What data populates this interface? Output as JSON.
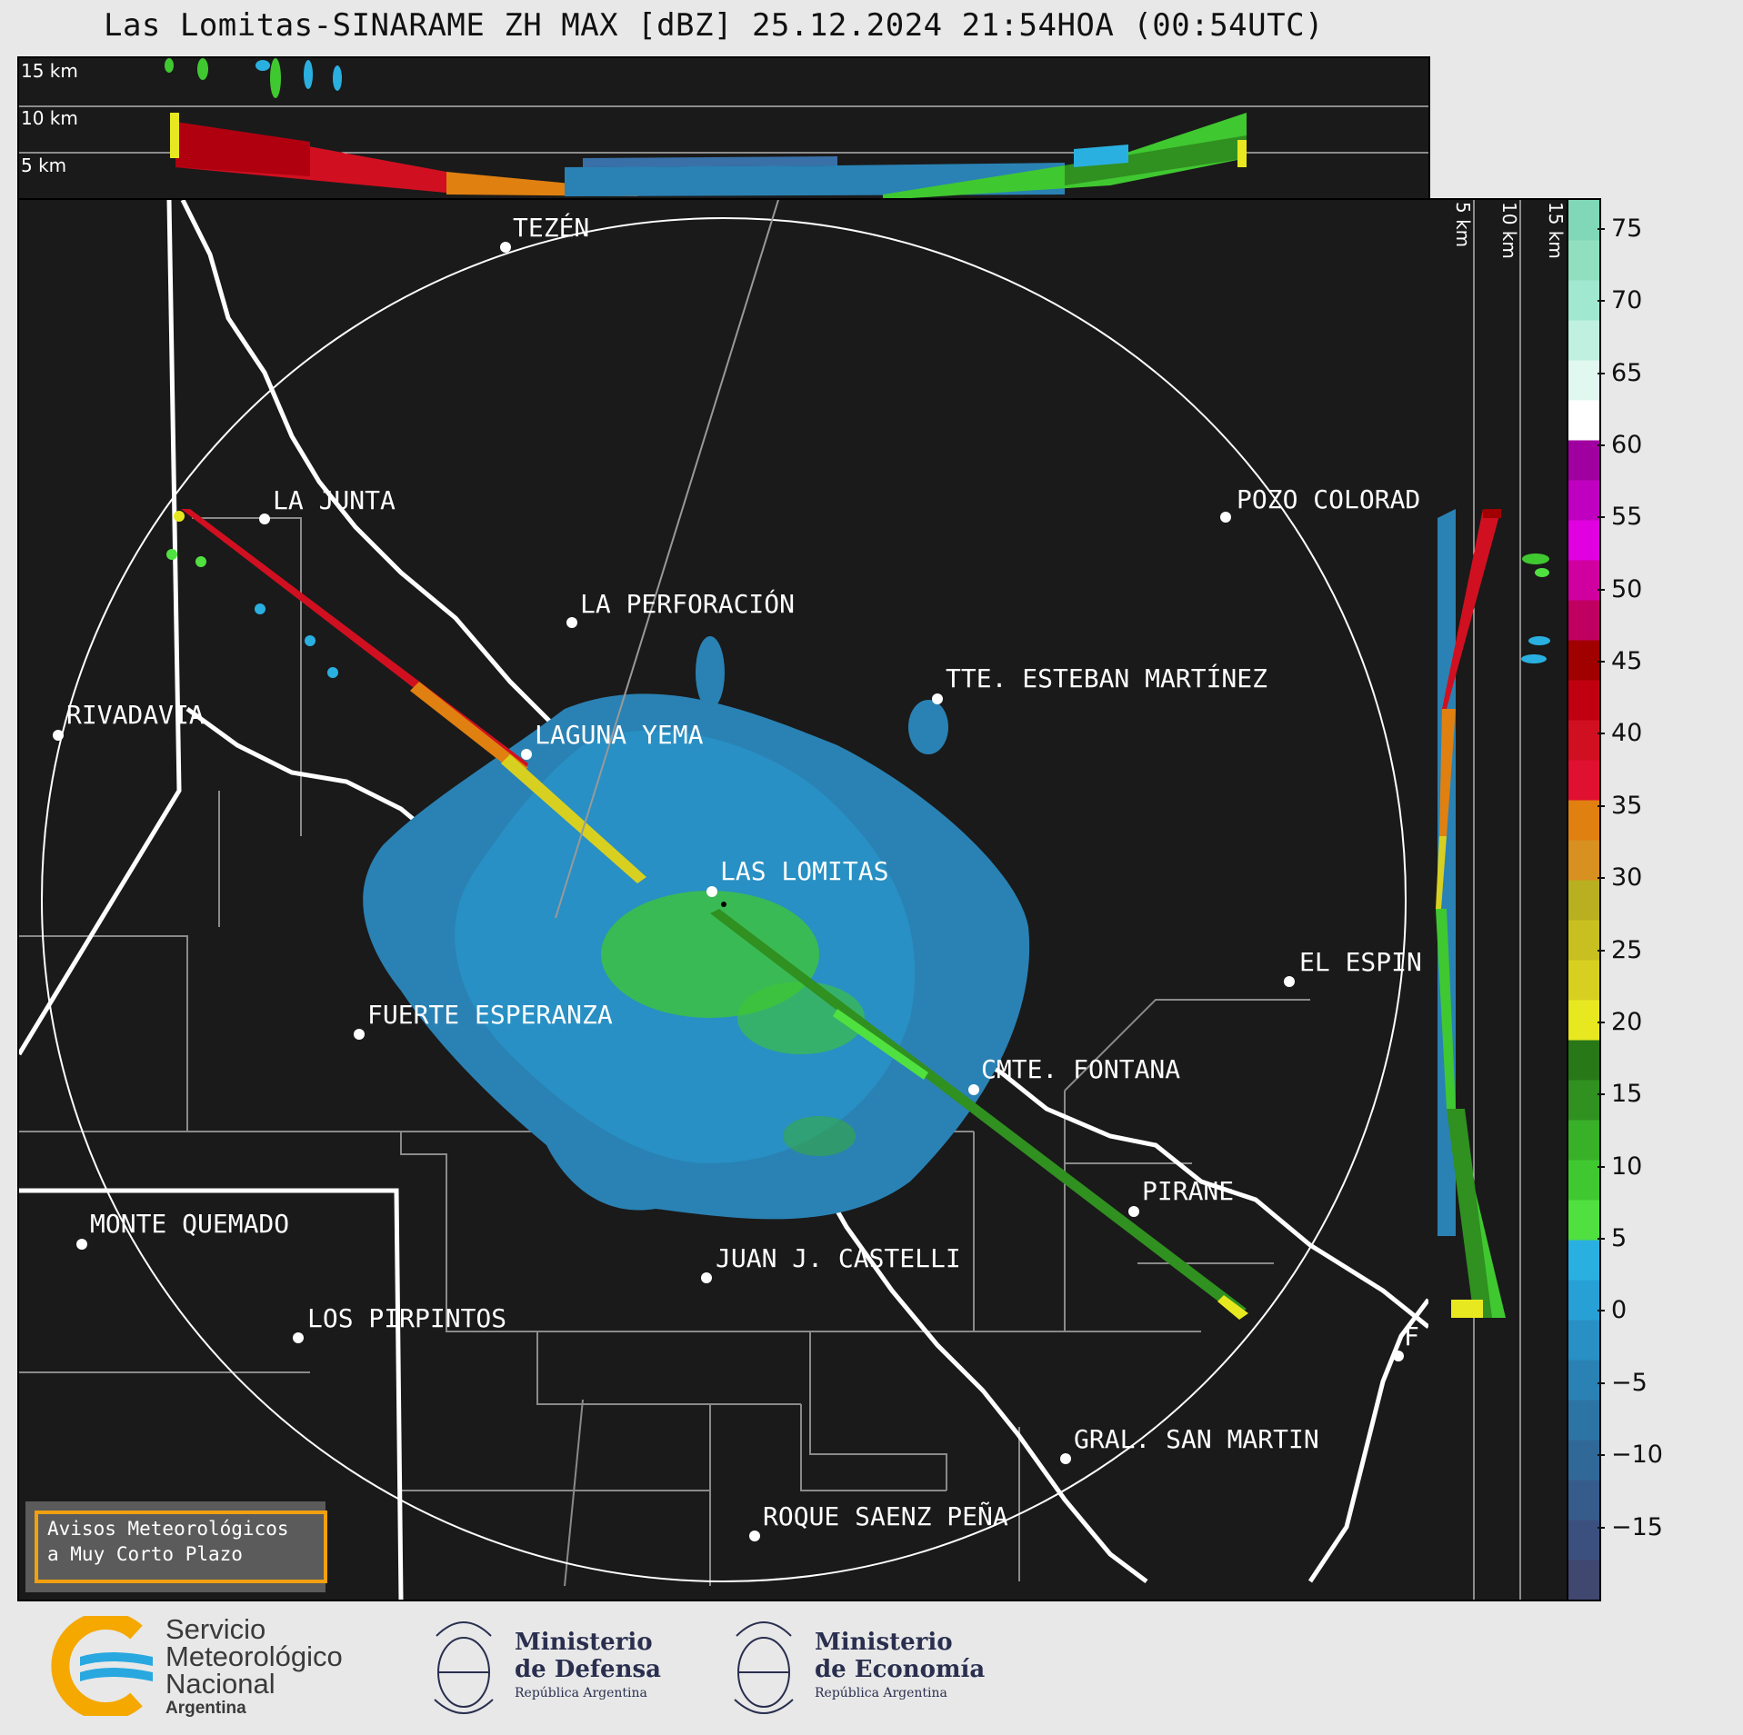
{
  "title": "Las Lomitas-SINARAME ZH MAX [dBZ] 25.12.2024 21:54HOA (00:54UTC)",
  "top_panel": {
    "altitude_labels": [
      "15 km",
      "10 km",
      "5 km"
    ]
  },
  "side_panel": {
    "altitude_labels": [
      "5 km",
      "10 km",
      "15 km"
    ]
  },
  "colorbar": {
    "unit": "dBZ",
    "ticks": [
      "75",
      "70",
      "65",
      "60",
      "55",
      "50",
      "45",
      "40",
      "35",
      "30",
      "25",
      "20",
      "15",
      "10",
      "5",
      "0",
      "−5",
      "−10",
      "−15"
    ],
    "range": [
      -20,
      77
    ],
    "colors": [
      "#404870",
      "#3c5080",
      "#365c8c",
      "#306898",
      "#2c74a4",
      "#2a82b4",
      "#2890c4",
      "#27a0d6",
      "#2ab0e0",
      "#50e040",
      "#40c830",
      "#38b028",
      "#309020",
      "#287818",
      "#e8e820",
      "#d8d020",
      "#c8c020",
      "#b8b020",
      "#d89020",
      "#e08010",
      "#e01030",
      "#d01020",
      "#c00010",
      "#a00000",
      "#c00060",
      "#d000a0",
      "#e000e0",
      "#c000c0",
      "#a000a0",
      "#ffffff",
      "#e0f8f0",
      "#c0f0e0",
      "#a0e8d0",
      "#90e0c0",
      "#80d8b8"
    ]
  },
  "map": {
    "cities": [
      {
        "name": "TEZÉN"
      },
      {
        "name": "LA JUNTA"
      },
      {
        "name": "POZO COLORAD"
      },
      {
        "name": "LA PERFORACIÓN"
      },
      {
        "name": "TTE. ESTEBAN MARTÍNEZ"
      },
      {
        "name": "RIVADAVIA"
      },
      {
        "name": "LAGUNA YEMA"
      },
      {
        "name": "LAS LOMITAS"
      },
      {
        "name": "EL ESPIN"
      },
      {
        "name": "FUERTE ESPERANZA"
      },
      {
        "name": "CMTE. FONTANA"
      },
      {
        "name": "PIRANE"
      },
      {
        "name": "MONTE QUEMADO"
      },
      {
        "name": "JUAN J. CASTELLI"
      },
      {
        "name": "LOS PIRPINTOS"
      },
      {
        "name": "GRAL. SAN MARTIN"
      },
      {
        "name": "ROQUE SAENZ PEÑA"
      },
      {
        "name": "F"
      }
    ],
    "warning_line1": "Avisos Meteorológicos",
    "warning_line2": "a Muy Corto Plazo"
  },
  "footer": {
    "smn": {
      "line1": "Servicio",
      "line2": "Meteorológico",
      "line3": "Nacional",
      "line4": "Argentina"
    },
    "defensa": {
      "line1": "Ministerio",
      "line2": "de Defensa",
      "line3": "República Argentina"
    },
    "economia": {
      "line1": "Ministerio",
      "line2": "de Economía",
      "line3": "República Argentina"
    },
    "colors": {
      "smn_orange": "#f5a800",
      "smn_blue": "#29a8e0",
      "ministry_text": "#2a2f4f"
    }
  }
}
